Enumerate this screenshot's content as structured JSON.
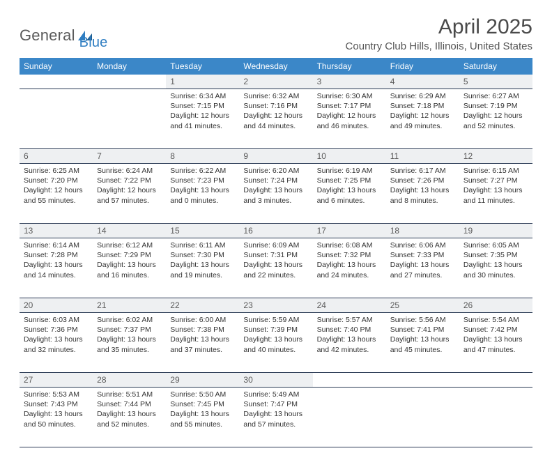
{
  "logo": {
    "text1": "General",
    "text2": "Blue"
  },
  "header": {
    "title": "April 2025",
    "location": "Country Club Hills, Illinois, United States"
  },
  "colors": {
    "header_bg": "#3b87c8",
    "header_fg": "#ffffff",
    "daynum_bg": "#eef0f2",
    "text": "#333333",
    "logo_gray": "#5a5a5a",
    "logo_blue": "#2f7ec2",
    "rule": "#2a3b55"
  },
  "columns": [
    "Sunday",
    "Monday",
    "Tuesday",
    "Wednesday",
    "Thursday",
    "Friday",
    "Saturday"
  ],
  "weeks": [
    [
      null,
      null,
      {
        "n": "1",
        "sr": "Sunrise: 6:34 AM",
        "ss": "Sunset: 7:15 PM",
        "d1": "Daylight: 12 hours",
        "d2": "and 41 minutes."
      },
      {
        "n": "2",
        "sr": "Sunrise: 6:32 AM",
        "ss": "Sunset: 7:16 PM",
        "d1": "Daylight: 12 hours",
        "d2": "and 44 minutes."
      },
      {
        "n": "3",
        "sr": "Sunrise: 6:30 AM",
        "ss": "Sunset: 7:17 PM",
        "d1": "Daylight: 12 hours",
        "d2": "and 46 minutes."
      },
      {
        "n": "4",
        "sr": "Sunrise: 6:29 AM",
        "ss": "Sunset: 7:18 PM",
        "d1": "Daylight: 12 hours",
        "d2": "and 49 minutes."
      },
      {
        "n": "5",
        "sr": "Sunrise: 6:27 AM",
        "ss": "Sunset: 7:19 PM",
        "d1": "Daylight: 12 hours",
        "d2": "and 52 minutes."
      }
    ],
    [
      {
        "n": "6",
        "sr": "Sunrise: 6:25 AM",
        "ss": "Sunset: 7:20 PM",
        "d1": "Daylight: 12 hours",
        "d2": "and 55 minutes."
      },
      {
        "n": "7",
        "sr": "Sunrise: 6:24 AM",
        "ss": "Sunset: 7:22 PM",
        "d1": "Daylight: 12 hours",
        "d2": "and 57 minutes."
      },
      {
        "n": "8",
        "sr": "Sunrise: 6:22 AM",
        "ss": "Sunset: 7:23 PM",
        "d1": "Daylight: 13 hours",
        "d2": "and 0 minutes."
      },
      {
        "n": "9",
        "sr": "Sunrise: 6:20 AM",
        "ss": "Sunset: 7:24 PM",
        "d1": "Daylight: 13 hours",
        "d2": "and 3 minutes."
      },
      {
        "n": "10",
        "sr": "Sunrise: 6:19 AM",
        "ss": "Sunset: 7:25 PM",
        "d1": "Daylight: 13 hours",
        "d2": "and 6 minutes."
      },
      {
        "n": "11",
        "sr": "Sunrise: 6:17 AM",
        "ss": "Sunset: 7:26 PM",
        "d1": "Daylight: 13 hours",
        "d2": "and 8 minutes."
      },
      {
        "n": "12",
        "sr": "Sunrise: 6:15 AM",
        "ss": "Sunset: 7:27 PM",
        "d1": "Daylight: 13 hours",
        "d2": "and 11 minutes."
      }
    ],
    [
      {
        "n": "13",
        "sr": "Sunrise: 6:14 AM",
        "ss": "Sunset: 7:28 PM",
        "d1": "Daylight: 13 hours",
        "d2": "and 14 minutes."
      },
      {
        "n": "14",
        "sr": "Sunrise: 6:12 AM",
        "ss": "Sunset: 7:29 PM",
        "d1": "Daylight: 13 hours",
        "d2": "and 16 minutes."
      },
      {
        "n": "15",
        "sr": "Sunrise: 6:11 AM",
        "ss": "Sunset: 7:30 PM",
        "d1": "Daylight: 13 hours",
        "d2": "and 19 minutes."
      },
      {
        "n": "16",
        "sr": "Sunrise: 6:09 AM",
        "ss": "Sunset: 7:31 PM",
        "d1": "Daylight: 13 hours",
        "d2": "and 22 minutes."
      },
      {
        "n": "17",
        "sr": "Sunrise: 6:08 AM",
        "ss": "Sunset: 7:32 PM",
        "d1": "Daylight: 13 hours",
        "d2": "and 24 minutes."
      },
      {
        "n": "18",
        "sr": "Sunrise: 6:06 AM",
        "ss": "Sunset: 7:33 PM",
        "d1": "Daylight: 13 hours",
        "d2": "and 27 minutes."
      },
      {
        "n": "19",
        "sr": "Sunrise: 6:05 AM",
        "ss": "Sunset: 7:35 PM",
        "d1": "Daylight: 13 hours",
        "d2": "and 30 minutes."
      }
    ],
    [
      {
        "n": "20",
        "sr": "Sunrise: 6:03 AM",
        "ss": "Sunset: 7:36 PM",
        "d1": "Daylight: 13 hours",
        "d2": "and 32 minutes."
      },
      {
        "n": "21",
        "sr": "Sunrise: 6:02 AM",
        "ss": "Sunset: 7:37 PM",
        "d1": "Daylight: 13 hours",
        "d2": "and 35 minutes."
      },
      {
        "n": "22",
        "sr": "Sunrise: 6:00 AM",
        "ss": "Sunset: 7:38 PM",
        "d1": "Daylight: 13 hours",
        "d2": "and 37 minutes."
      },
      {
        "n": "23",
        "sr": "Sunrise: 5:59 AM",
        "ss": "Sunset: 7:39 PM",
        "d1": "Daylight: 13 hours",
        "d2": "and 40 minutes."
      },
      {
        "n": "24",
        "sr": "Sunrise: 5:57 AM",
        "ss": "Sunset: 7:40 PM",
        "d1": "Daylight: 13 hours",
        "d2": "and 42 minutes."
      },
      {
        "n": "25",
        "sr": "Sunrise: 5:56 AM",
        "ss": "Sunset: 7:41 PM",
        "d1": "Daylight: 13 hours",
        "d2": "and 45 minutes."
      },
      {
        "n": "26",
        "sr": "Sunrise: 5:54 AM",
        "ss": "Sunset: 7:42 PM",
        "d1": "Daylight: 13 hours",
        "d2": "and 47 minutes."
      }
    ],
    [
      {
        "n": "27",
        "sr": "Sunrise: 5:53 AM",
        "ss": "Sunset: 7:43 PM",
        "d1": "Daylight: 13 hours",
        "d2": "and 50 minutes."
      },
      {
        "n": "28",
        "sr": "Sunrise: 5:51 AM",
        "ss": "Sunset: 7:44 PM",
        "d1": "Daylight: 13 hours",
        "d2": "and 52 minutes."
      },
      {
        "n": "29",
        "sr": "Sunrise: 5:50 AM",
        "ss": "Sunset: 7:45 PM",
        "d1": "Daylight: 13 hours",
        "d2": "and 55 minutes."
      },
      {
        "n": "30",
        "sr": "Sunrise: 5:49 AM",
        "ss": "Sunset: 7:47 PM",
        "d1": "Daylight: 13 hours",
        "d2": "and 57 minutes."
      },
      null,
      null,
      null
    ]
  ]
}
